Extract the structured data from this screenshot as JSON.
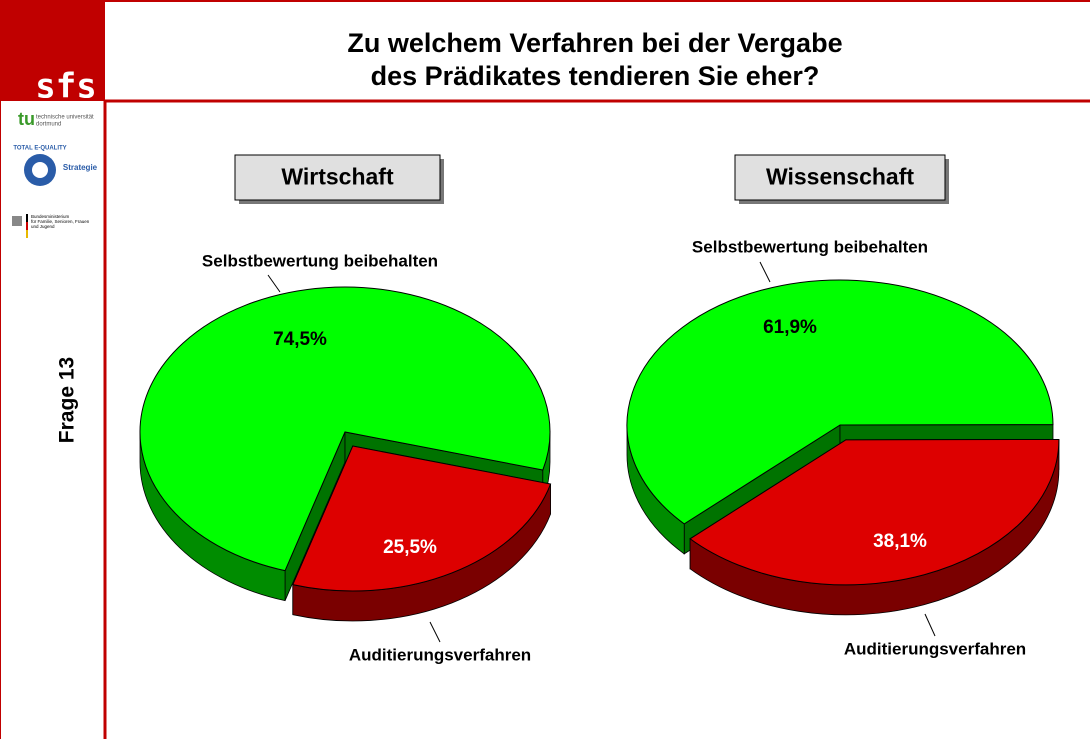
{
  "title": [
    "Zu welchem Verfahren bei der Vergabe",
    "des Prädikates tendieren Sie eher?"
  ],
  "sidebar": {
    "logo": "sfs",
    "question": "Frage 13",
    "university": [
      "technische universität",
      "dortmund"
    ],
    "quality": [
      "TOTAL E-QUALITY",
      "Strategie"
    ],
    "ministry": [
      "Bundesministerium",
      "für Familie, Senioren, Frauen",
      "und Jugend"
    ]
  },
  "chart_data": [
    {
      "type": "pie",
      "title": "Wirtschaft",
      "categories": [
        "Selbstbewertung beibehalten",
        "Auditierungsverfahren"
      ],
      "values": [
        74.5,
        25.5
      ],
      "value_labels": [
        "74,5%",
        "25,5%"
      ],
      "colors": [
        "#00ff00",
        "#dd0000"
      ]
    },
    {
      "type": "pie",
      "title": "Wissenschaft",
      "categories": [
        "Selbstbewertung beibehalten",
        "Auditierungsverfahren"
      ],
      "values": [
        61.9,
        38.1
      ],
      "value_labels": [
        "61,9%",
        "38,1%"
      ],
      "colors": [
        "#00ff00",
        "#dd0000"
      ]
    }
  ]
}
